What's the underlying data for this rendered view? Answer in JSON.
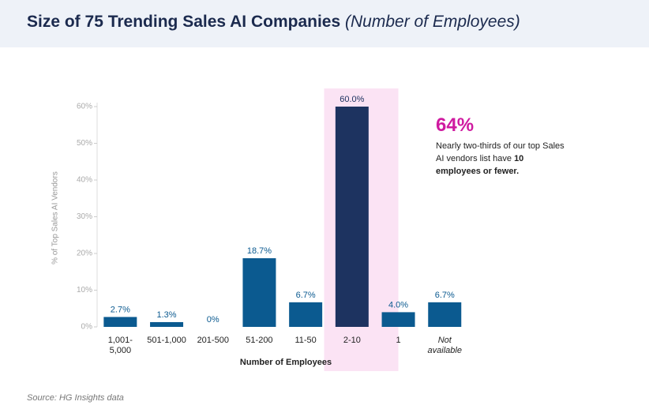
{
  "chart_data": {
    "type": "bar",
    "title": "Size of 75 Trending Sales AI Companies",
    "subtitle": "(Number of Employees)",
    "categories": [
      "1,001-5,000",
      "501-1,000",
      "201-500",
      "51-200",
      "11-50",
      "2-10",
      "1",
      "Not available"
    ],
    "values": [
      2.7,
      1.3,
      0,
      18.7,
      6.7,
      60.0,
      4.0,
      6.7
    ],
    "value_labels": [
      "2.7%",
      "1.3%",
      "0%",
      "18.7%",
      "6.7%",
      "60.0%",
      "4.0%",
      "6.7%"
    ],
    "colors": [
      "#0b5a90",
      "#0b5a90",
      "#0b5a90",
      "#0b5a90",
      "#0b5a90",
      "#1d3360",
      "#0b5a90",
      "#0b5a90"
    ],
    "highlight": [
      5,
      6
    ],
    "highlight_color": "#fbe3f4",
    "ylim": [
      0,
      60
    ],
    "yticks": [
      {
        "value": 0,
        "label": "0%"
      },
      {
        "value": 10,
        "label": "10%"
      },
      {
        "value": 20,
        "label": "20%"
      },
      {
        "value": 30,
        "label": "30%"
      },
      {
        "value": 40,
        "label": "40%"
      },
      {
        "value": 50,
        "label": "50%"
      },
      {
        "value": 60,
        "label": "60%"
      }
    ],
    "ylabel": "% of Top Sales AI Vendors",
    "xlabel": "Number of Employees",
    "annotation": {
      "headline": "64%",
      "text": "Nearly two-thirds of our top Sales AI vendors list have",
      "bold": "10 employees or fewer."
    },
    "source": "Source: HG Insights data"
  }
}
